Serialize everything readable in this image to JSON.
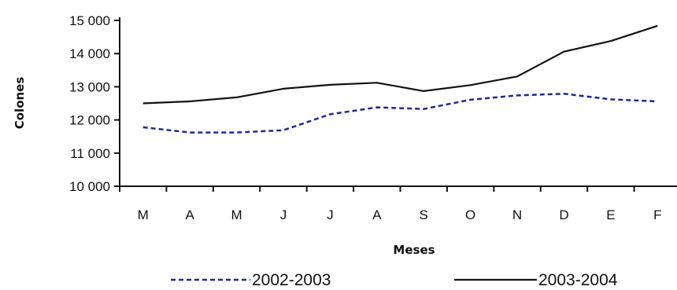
{
  "chart_data": {
    "type": "line",
    "categories": [
      "M",
      "A",
      "M",
      "J",
      "J",
      "A",
      "S",
      "O",
      "N",
      "D",
      "E",
      "F"
    ],
    "series": [
      {
        "name": "2002-2003",
        "color": "#1f2a8c",
        "dash": "dashed",
        "values": [
          11780,
          11620,
          11620,
          11690,
          12170,
          12380,
          12330,
          12610,
          12740,
          12790,
          12620,
          12560
        ]
      },
      {
        "name": "2003-2004",
        "color": "#111111",
        "dash": "solid",
        "values": [
          12500,
          12560,
          12680,
          12940,
          13060,
          13120,
          12870,
          13050,
          13310,
          14060,
          14380,
          14840
        ]
      }
    ],
    "xlabel": "Meses",
    "ylabel": "Colones",
    "ylim": [
      10000,
      15000
    ],
    "yticks": [
      10000,
      11000,
      12000,
      13000,
      14000,
      15000
    ],
    "ytick_labels": [
      "10 000",
      "11 000",
      "12 000",
      "13 000",
      "14 000",
      "15 000"
    ],
    "grid": false,
    "legend_position": "bottom"
  }
}
